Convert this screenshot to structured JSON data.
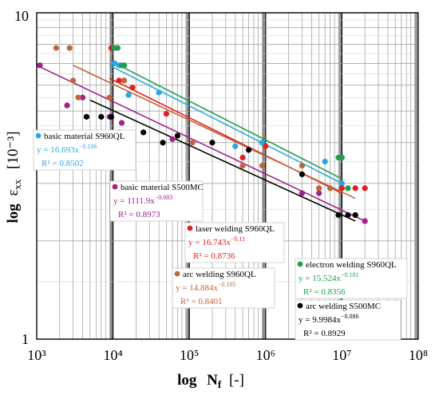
{
  "chart_data": {
    "type": "scatter",
    "x_scale": "log",
    "y_scale": "log",
    "xlim": [
      1000,
      100000000
    ],
    "ylim": [
      1,
      10
    ],
    "x_tick_labels": [
      "10³",
      "10⁴",
      "10⁵",
      "10⁶",
      "10⁷",
      "10⁸"
    ],
    "y_tick_labels": [
      "1",
      "10"
    ],
    "xlabel": "log",
    "xlabel_var": "N",
    "xlabel_sub": "f",
    "xlabel_unit": "[-]",
    "ylabel": "log",
    "ylabel_var": "ε",
    "ylabel_sub": "xx",
    "ylabel_unit": "[10⁻³]",
    "grid": true,
    "series": [
      {
        "name": "basic material S960QL",
        "color": "#29a8e0",
        "equation": "y = 16.693x",
        "exponent": "−0.106",
        "r2": "R² = 0.8502",
        "fit": [
          [
            9000,
            6.9
          ],
          [
            10000000,
            3.0
          ]
        ],
        "points": [
          [
            10000,
            7.8
          ],
          [
            10500,
            7.0
          ],
          [
            12000,
            6.9
          ],
          [
            14000,
            6.2
          ],
          [
            16000,
            5.6
          ],
          [
            40000,
            5.7
          ],
          [
            400000,
            3.9
          ],
          [
            900000,
            4.0
          ],
          [
            6000000,
            3.5
          ],
          [
            10000000,
            3.0
          ],
          [
            12000000,
            2.9
          ]
        ]
      },
      {
        "name": "basic material S500MC",
        "color": "#a0208c",
        "equation": "y = 1111.9x",
        "exponent": "−0.083",
        "r2": "R² = 0.8973",
        "fit": [
          [
            1000,
            6.9
          ],
          [
            20000000,
            2.3
          ]
        ],
        "points": [
          [
            1100,
            6.9
          ],
          [
            2500,
            5.2
          ],
          [
            4000,
            5.5
          ],
          [
            9000,
            4.8
          ],
          [
            13000,
            4.6
          ],
          [
            60000,
            4.1
          ],
          [
            3000000,
            2.8
          ],
          [
            5000000,
            2.8
          ],
          [
            20000000,
            2.3
          ]
        ]
      },
      {
        "name": "laser welding S960QL",
        "color": "#e02020",
        "equation": "y = 16.743x",
        "exponent": "−0.11",
        "r2": "R² = 0.8736",
        "fit": [
          [
            9000,
            6.3
          ],
          [
            10000000,
            2.8
          ]
        ],
        "points": [
          [
            9500,
            7.8
          ],
          [
            12000,
            6.2
          ],
          [
            18000,
            5.9
          ],
          [
            50000,
            4.9
          ],
          [
            500000,
            3.6
          ],
          [
            1000000,
            3.9
          ],
          [
            5000000,
            2.9
          ],
          [
            10000000,
            2.9
          ],
          [
            15000000,
            2.9
          ],
          [
            20000000,
            2.9
          ]
        ]
      },
      {
        "name": "arc welding S960QL",
        "color": "#c0643c",
        "equation": "y = 14.884x",
        "exponent": "−0.105",
        "r2": "R² = 0.8401",
        "fit": [
          [
            3000,
            6.9
          ],
          [
            15000000,
            2.7
          ]
        ],
        "points": [
          [
            1800,
            7.8
          ],
          [
            2700,
            7.8
          ],
          [
            3000,
            6.2
          ],
          [
            3500,
            5.5
          ],
          [
            9000,
            5.5
          ],
          [
            14000,
            6.2
          ],
          [
            110000,
            4.0
          ],
          [
            500000,
            3.4
          ],
          [
            900000,
            3.4
          ],
          [
            3000000,
            3.4
          ],
          [
            5000000,
            2.9
          ],
          [
            7000000,
            2.9
          ]
        ]
      },
      {
        "name": "electron welding S960QL",
        "color": "#1e9e50",
        "equation": "y = 15.524x",
        "exponent": "−0.101",
        "r2": "R² = 0.8356",
        "fit": [
          [
            12000,
            6.9
          ],
          [
            10000000,
            3.1
          ]
        ],
        "points": [
          [
            10500,
            7.8
          ],
          [
            11500,
            7.8
          ],
          [
            13000,
            6.9
          ],
          [
            14000,
            6.9
          ],
          [
            9000000,
            3.6
          ],
          [
            10000000,
            3.6
          ],
          [
            12000000,
            2.9
          ]
        ]
      },
      {
        "name": "arc welding S500MC",
        "color": "#000000",
        "equation": "y = 9.9984x",
        "exponent": "−0.086",
        "r2": "R² = 0.8929",
        "fit": [
          [
            5000,
            5.4
          ],
          [
            15000000,
            2.3
          ]
        ],
        "points": [
          [
            4500,
            4.8
          ],
          [
            7000,
            4.8
          ],
          [
            9500,
            4.8
          ],
          [
            12000,
            4.3
          ],
          [
            25000,
            4.3
          ],
          [
            45000,
            4.0
          ],
          [
            70000,
            4.2
          ],
          [
            200000,
            4.0
          ],
          [
            600000,
            3.8
          ],
          [
            3000000,
            3.2
          ],
          [
            9000000,
            2.4
          ],
          [
            12000000,
            2.4
          ],
          [
            15000000,
            2.4
          ]
        ]
      }
    ]
  }
}
